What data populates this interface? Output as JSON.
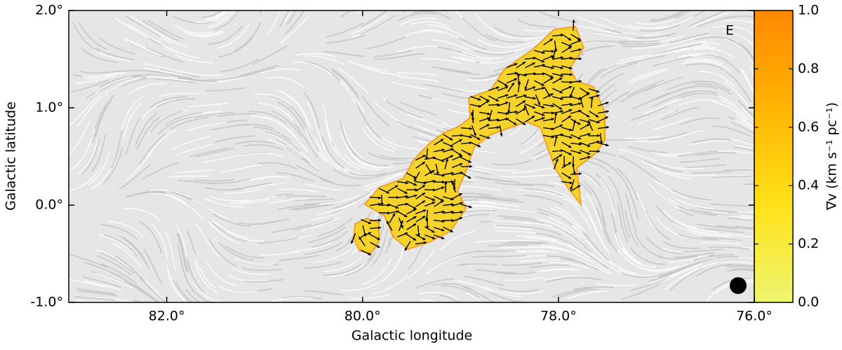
{
  "chart_data": {
    "type": "map",
    "xlabel": "Galactic longitude",
    "ylabel": "Galactic latitude",
    "xlim": [
      83,
      76
    ],
    "ylim": [
      -1,
      2
    ],
    "xticks": [
      {
        "value": 82,
        "label": "82.0°"
      },
      {
        "value": 80,
        "label": "80.0°"
      },
      {
        "value": 78,
        "label": "78.0°"
      },
      {
        "value": 76,
        "label": "76.0°"
      }
    ],
    "yticks": [
      {
        "value": -1,
        "label": "-1.0°"
      },
      {
        "value": 0,
        "label": "0.0°"
      },
      {
        "value": 1,
        "label": "1.0°"
      },
      {
        "value": 2,
        "label": "2.0°"
      }
    ],
    "panel_label": "E",
    "colorbar": {
      "label": "∇v (km s⁻¹ pc⁻¹)",
      "lim": [
        0,
        1
      ],
      "colors": [
        "#eef570",
        "#ffe21a",
        "#ffb400",
        "#ff8800"
      ],
      "ticks": [
        {
          "value": 0,
          "label": "0.0"
        },
        {
          "value": 0.2,
          "label": "0.2"
        },
        {
          "value": 0.4,
          "label": "0.4"
        },
        {
          "value": 0.6,
          "label": "0.6"
        },
        {
          "value": 0.8,
          "label": "0.8"
        },
        {
          "value": 1,
          "label": "1.0"
        }
      ]
    }
  }
}
